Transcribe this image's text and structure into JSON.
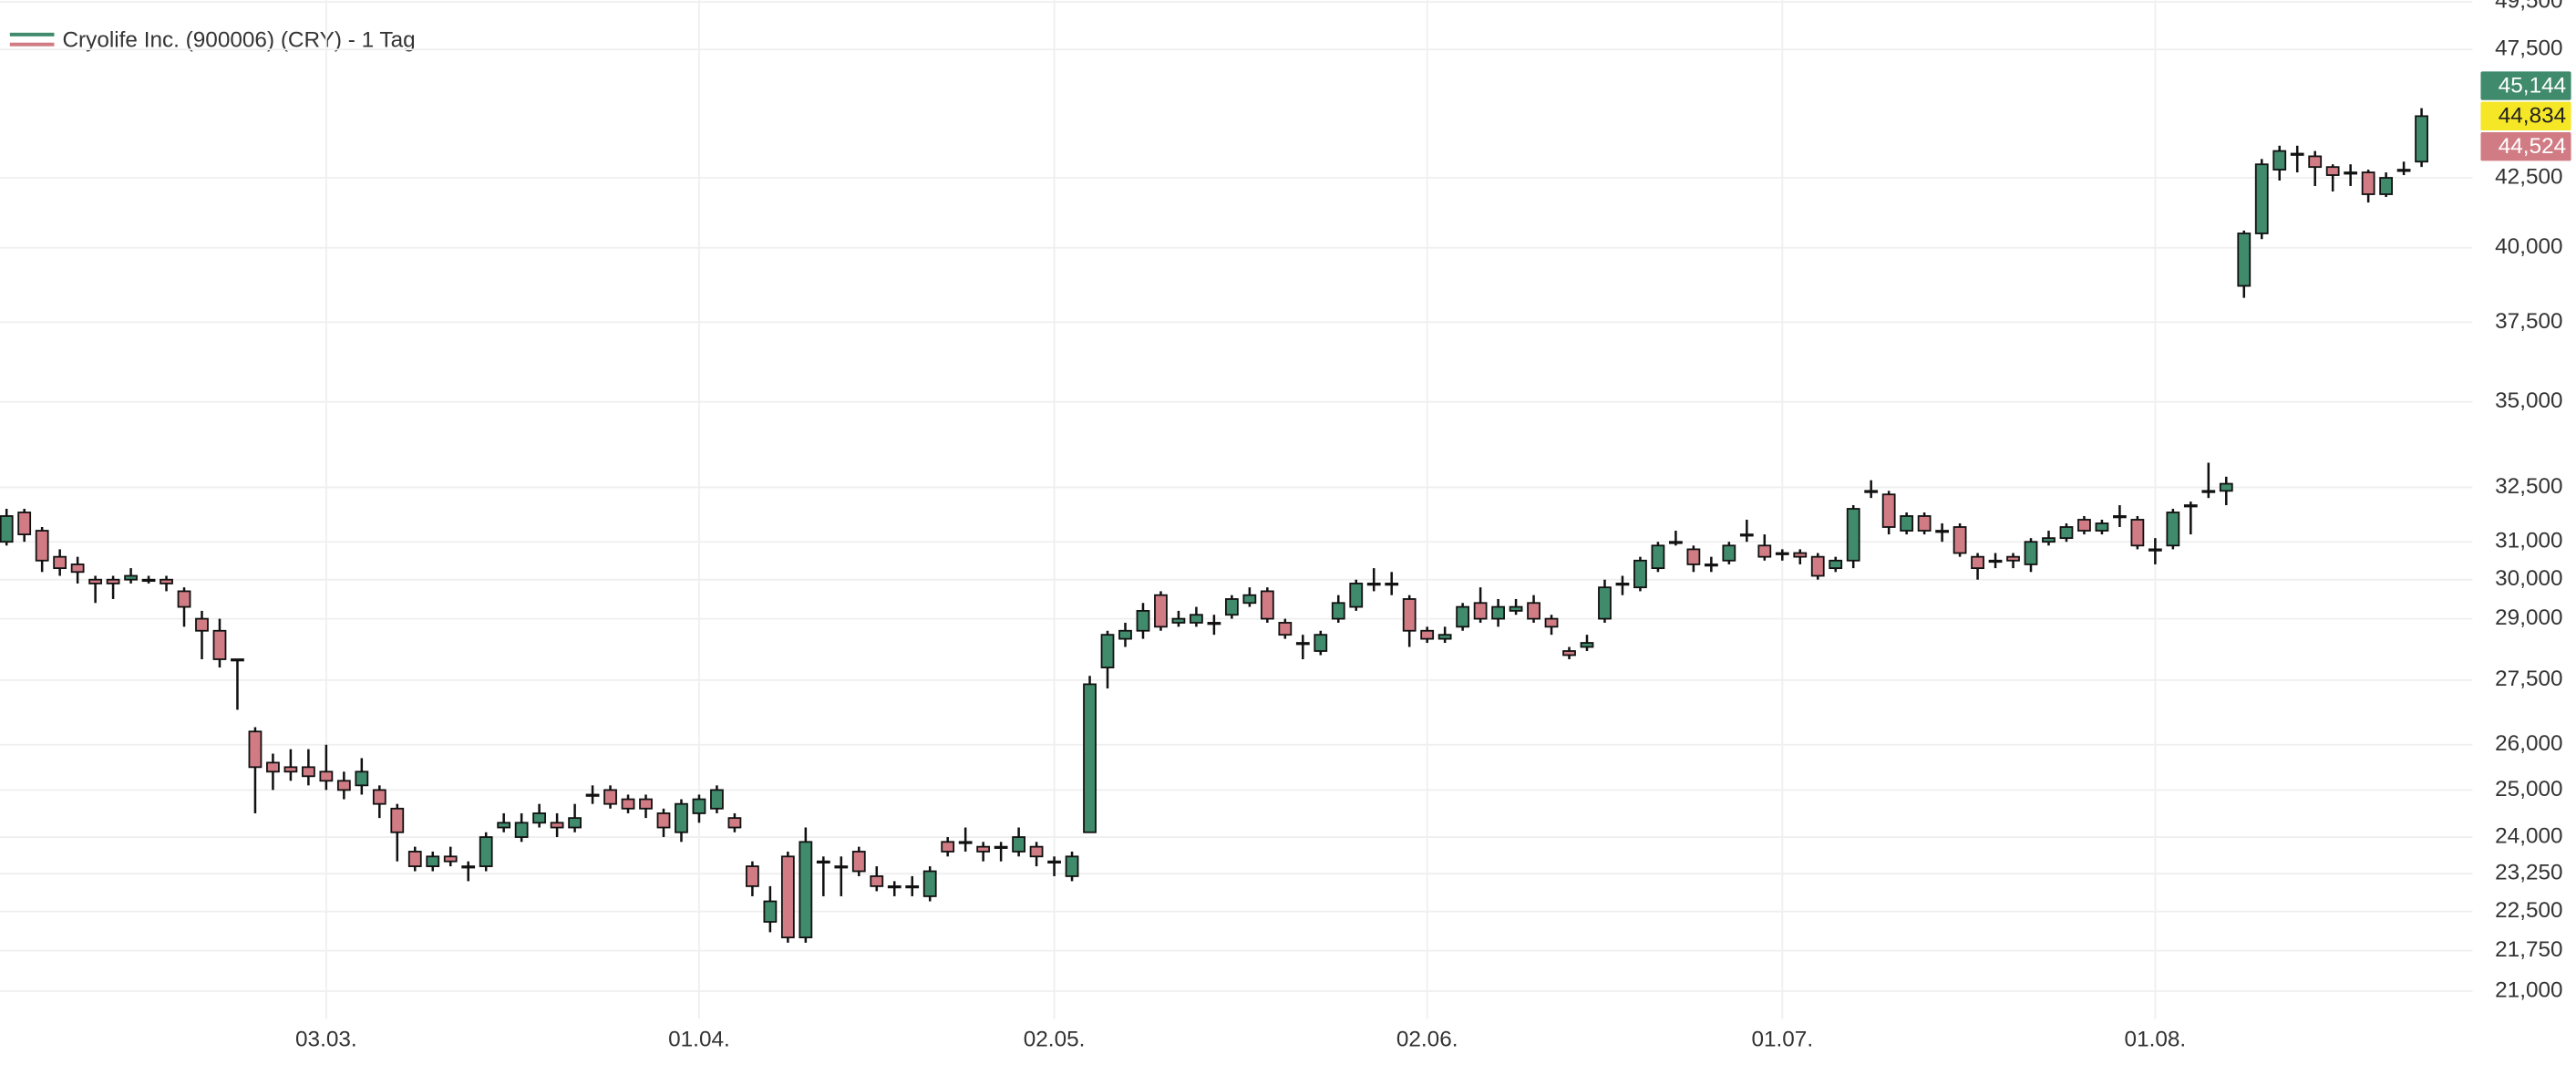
{
  "chart_data": {
    "type": "candlestick",
    "title": "Cryolife Inc. (900006) (CRY) - 1 Tag",
    "up_color": "#418b6d",
    "down_color": "#d17c84",
    "log_scale": true,
    "grid": true,
    "ylim": [
      20500,
      49580
    ],
    "yticks": [
      {
        "value": 21000,
        "label": "21,000"
      },
      {
        "value": 21750,
        "label": "21,750"
      },
      {
        "value": 22500,
        "label": "22,500"
      },
      {
        "value": 23250,
        "label": "23,250"
      },
      {
        "value": 24000,
        "label": "24,000"
      },
      {
        "value": 25000,
        "label": "25,000"
      },
      {
        "value": 26000,
        "label": "26,000"
      },
      {
        "value": 27500,
        "label": "27,500"
      },
      {
        "value": 29000,
        "label": "29,000"
      },
      {
        "value": 30000,
        "label": "30,000"
      },
      {
        "value": 31000,
        "label": "31,000"
      },
      {
        "value": 32500,
        "label": "32,500"
      },
      {
        "value": 35000,
        "label": "35,000"
      },
      {
        "value": 37500,
        "label": "37,500"
      },
      {
        "value": 40000,
        "label": "40,000"
      },
      {
        "value": 42500,
        "label": "42,500"
      },
      {
        "value": 47500,
        "label": "47,500"
      },
      {
        "value": 49500,
        "label": "49,500"
      }
    ],
    "price_labels": [
      {
        "value": 45144,
        "label": "45,144",
        "color": "#418b6d",
        "text_color": "#ffffff"
      },
      {
        "value": 44834,
        "label": "44,834",
        "color": "#f5e626",
        "text_color": "#222222"
      },
      {
        "value": 44524,
        "label": "44,524",
        "color": "#d17c84",
        "text_color": "#ffffff"
      }
    ],
    "categories": [
      null,
      null,
      null,
      null,
      null,
      null,
      null,
      null,
      null,
      null,
      null,
      null,
      null,
      null,
      null,
      null,
      null,
      null,
      "03.03.",
      null,
      null,
      null,
      null,
      null,
      null,
      null,
      null,
      null,
      null,
      null,
      null,
      null,
      null,
      null,
      null,
      null,
      null,
      null,
      null,
      "01.04.",
      null,
      null,
      null,
      null,
      null,
      null,
      null,
      null,
      null,
      null,
      null,
      null,
      null,
      null,
      null,
      null,
      null,
      null,
      null,
      "02.05.",
      null,
      null,
      null,
      null,
      null,
      null,
      null,
      null,
      null,
      null,
      null,
      null,
      null,
      null,
      null,
      null,
      null,
      null,
      null,
      null,
      "02.06.",
      null,
      null,
      null,
      null,
      null,
      null,
      null,
      null,
      null,
      null,
      null,
      null,
      null,
      null,
      null,
      null,
      null,
      null,
      null,
      "01.07.",
      null,
      null,
      null,
      null,
      null,
      null,
      null,
      null,
      null,
      null,
      null,
      null,
      null,
      null,
      null,
      null,
      null,
      null,
      null,
      null,
      "01.08.",
      null,
      null,
      null,
      null,
      null,
      null,
      null,
      null,
      null,
      null,
      null,
      null,
      null,
      null,
      null
    ],
    "open": [
      31000,
      31800,
      31300,
      30600,
      30400,
      30000,
      30000,
      30000,
      30000,
      30000,
      29700,
      29000,
      28700,
      28000,
      26300,
      25600,
      25500,
      25500,
      25400,
      25200,
      25100,
      25000,
      24600,
      23700,
      23400,
      23600,
      23400,
      23400,
      24200,
      24000,
      24300,
      24300,
      24200,
      24900,
      25000,
      24800,
      24800,
      24500,
      24100,
      24500,
      24600,
      24400,
      23400,
      22300,
      23600,
      22000,
      23500,
      23400,
      23700,
      23200,
      23000,
      23000,
      22800,
      23900,
      23900,
      23800,
      23800,
      23700,
      23800,
      23500,
      23200,
      24100,
      27800,
      28500,
      28700,
      29600,
      28900,
      28900,
      28900,
      29100,
      29400,
      29700,
      28900,
      28400,
      28200,
      29000,
      29300,
      29900,
      29900,
      29500,
      28700,
      28500,
      28800,
      29400,
      29000,
      29200,
      29400,
      29000,
      28200,
      28300,
      29000,
      29900,
      29800,
      30300,
      31000,
      30800,
      30400,
      30500,
      31200,
      30900,
      30700,
      30700,
      30600,
      30300,
      30500,
      32400,
      32300,
      31300,
      31700,
      31300,
      31400,
      30600,
      30500,
      30600,
      30400,
      31000,
      31100,
      31600,
      31300,
      31700,
      31600,
      30800,
      30900,
      32000,
      32400,
      32400,
      38700,
      40500,
      42800,
      43400,
      43300,
      42900,
      42700,
      42700,
      41900,
      42800,
      43100
    ],
    "high": [
      31900,
      31900,
      31400,
      30800,
      30600,
      30100,
      30100,
      30300,
      30100,
      30100,
      29800,
      29200,
      29000,
      28000,
      26400,
      25800,
      25900,
      25900,
      26000,
      25400,
      25700,
      25100,
      24700,
      23800,
      23700,
      23800,
      23500,
      24100,
      24500,
      24500,
      24700,
      24500,
      24700,
      25100,
      25100,
      24900,
      24900,
      24600,
      24800,
      24900,
      25100,
      24500,
      23500,
      23000,
      23700,
      24200,
      23600,
      23600,
      23800,
      23400,
      23100,
      23200,
      23400,
      24000,
      24200,
      23900,
      23900,
      24200,
      23900,
      23600,
      23700,
      27600,
      28700,
      28900,
      29400,
      29700,
      29200,
      29300,
      29100,
      29600,
      29800,
      29800,
      29000,
      28600,
      28700,
      29600,
      30000,
      30300,
      30200,
      29600,
      28800,
      28800,
      29400,
      29800,
      29500,
      29500,
      29600,
      29100,
      28300,
      28600,
      30000,
      30100,
      30600,
      31000,
      31300,
      30900,
      30600,
      31000,
      31600,
      31200,
      30800,
      30800,
      30700,
      30600,
      32000,
      32700,
      32400,
      31800,
      31800,
      31500,
      31500,
      30700,
      30700,
      30700,
      31100,
      31300,
      31500,
      31700,
      31600,
      32000,
      31700,
      31100,
      31900,
      32100,
      33200,
      32800,
      40600,
      43200,
      43700,
      43700,
      43500,
      43000,
      43000,
      42800,
      42700,
      43100,
      45144
    ],
    "low": [
      30900,
      31000,
      30200,
      30100,
      29900,
      29400,
      29500,
      29900,
      29900,
      29700,
      28800,
      28000,
      27800,
      26800,
      24500,
      25000,
      25200,
      25100,
      25000,
      24800,
      24900,
      24400,
      23500,
      23300,
      23300,
      23400,
      23100,
      23300,
      24100,
      23900,
      24200,
      24000,
      24100,
      24700,
      24600,
      24500,
      24400,
      24000,
      23900,
      24300,
      24500,
      24100,
      22800,
      22100,
      21900,
      21900,
      22800,
      22800,
      23200,
      22900,
      22800,
      22800,
      22700,
      23600,
      23700,
      23500,
      23500,
      23600,
      23400,
      23200,
      23100,
      24100,
      27300,
      28300,
      28500,
      28700,
      28800,
      28800,
      28600,
      29000,
      29300,
      28900,
      28500,
      28000,
      28100,
      28900,
      29200,
      29700,
      29600,
      28300,
      28400,
      28400,
      28700,
      28900,
      28800,
      29100,
      28900,
      28600,
      28000,
      28200,
      28900,
      29600,
      29700,
      30200,
      30900,
      30200,
      30200,
      30400,
      31000,
      30500,
      30500,
      30400,
      30000,
      30200,
      30300,
      32200,
      31200,
      31200,
      31200,
      31000,
      30600,
      30000,
      30300,
      30300,
      30200,
      30900,
      31000,
      31200,
      31200,
      31400,
      30800,
      30400,
      30800,
      31200,
      32200,
      32000,
      38300,
      40300,
      42400,
      42700,
      42200,
      42000,
      42200,
      41600,
      41800,
      42600,
      42900
    ],
    "close": [
      31700,
      31200,
      30500,
      30300,
      30200,
      29900,
      29900,
      30100,
      30000,
      29900,
      29300,
      28700,
      28000,
      28000,
      25500,
      25400,
      25400,
      25300,
      25200,
      25000,
      25400,
      24700,
      24100,
      23400,
      23600,
      23500,
      23400,
      24000,
      24300,
      24300,
      24500,
      24200,
      24400,
      24900,
      24700,
      24600,
      24600,
      24200,
      24700,
      24800,
      25000,
      24200,
      23000,
      22700,
      22000,
      23900,
      23500,
      23400,
      23300,
      23000,
      23000,
      23000,
      23300,
      23700,
      23900,
      23700,
      23800,
      24000,
      23600,
      23500,
      23600,
      27400,
      28600,
      28700,
      29200,
      28800,
      29000,
      29100,
      28900,
      29500,
      29600,
      29000,
      28600,
      28400,
      28600,
      29400,
      29900,
      29900,
      29900,
      28700,
      28500,
      28600,
      29300,
      29000,
      29300,
      29300,
      29000,
      28800,
      28100,
      28400,
      29800,
      29900,
      30500,
      30900,
      31000,
      30400,
      30400,
      30900,
      31200,
      30600,
      30700,
      30600,
      30100,
      30500,
      31900,
      32400,
      31400,
      31700,
      31300,
      31300,
      30700,
      30300,
      30500,
      30500,
      31000,
      31100,
      31400,
      31300,
      31500,
      31700,
      30900,
      30800,
      31800,
      32000,
      32400,
      32600,
      40500,
      43000,
      43500,
      43400,
      42900,
      42600,
      42700,
      41900,
      42500,
      42800,
      44834
    ]
  }
}
